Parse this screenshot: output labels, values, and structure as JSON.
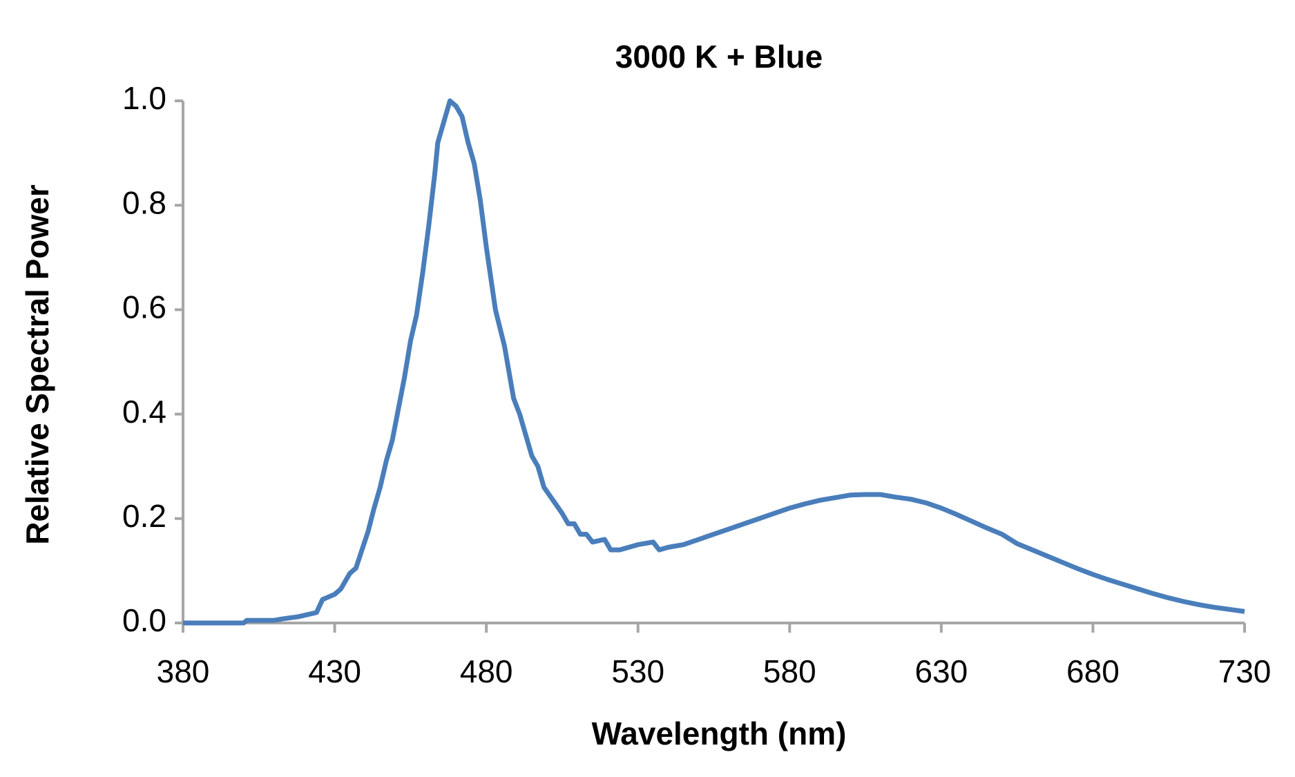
{
  "chart_data": {
    "type": "line",
    "title": "3000 K + Blue",
    "x_label": "Wavelength (nm)",
    "y_label": "Relative Spectral Power",
    "x": [
      380,
      390,
      400,
      401,
      410,
      413,
      418,
      424,
      426,
      430,
      432,
      435,
      437,
      439,
      441,
      443,
      445,
      447,
      449,
      451,
      453,
      455,
      457,
      459,
      461,
      463,
      464,
      466,
      468,
      470,
      472,
      474,
      476,
      478,
      480,
      483,
      486,
      489,
      491,
      493,
      495,
      497,
      499,
      502,
      505,
      507,
      509,
      511,
      513,
      515,
      519,
      521,
      524,
      530,
      535,
      537,
      540,
      545,
      550,
      555,
      560,
      565,
      570,
      575,
      580,
      585,
      590,
      595,
      600,
      605,
      610,
      615,
      620,
      625,
      630,
      635,
      640,
      645,
      650,
      655,
      660,
      665,
      670,
      675,
      680,
      685,
      690,
      695,
      700,
      705,
      710,
      715,
      720,
      725,
      730
    ],
    "series": [
      {
        "name": "3000 K + Blue",
        "color": "#4a7ebb",
        "values": [
          0,
          0,
          0,
          0.005,
          0.005,
          0.008,
          0.012,
          0.02,
          0.045,
          0.055,
          0.065,
          0.095,
          0.105,
          0.14,
          0.175,
          0.22,
          0.26,
          0.31,
          0.35,
          0.41,
          0.47,
          0.54,
          0.59,
          0.67,
          0.76,
          0.86,
          0.92,
          0.96,
          1.0,
          0.99,
          0.97,
          0.92,
          0.88,
          0.81,
          0.72,
          0.6,
          0.53,
          0.43,
          0.4,
          0.36,
          0.32,
          0.3,
          0.26,
          0.235,
          0.21,
          0.19,
          0.19,
          0.17,
          0.17,
          0.155,
          0.16,
          0.14,
          0.14,
          0.15,
          0.155,
          0.14,
          0.145,
          0.15,
          0.16,
          0.17,
          0.18,
          0.19,
          0.2,
          0.21,
          0.22,
          0.228,
          0.235,
          0.24,
          0.245,
          0.246,
          0.246,
          0.241,
          0.237,
          0.23,
          0.22,
          0.208,
          0.195,
          0.182,
          0.17,
          0.152,
          0.14,
          0.128,
          0.116,
          0.104,
          0.093,
          0.083,
          0.074,
          0.065,
          0.056,
          0.048,
          0.041,
          0.035,
          0.03,
          0.026,
          0.022
        ]
      }
    ],
    "xlim": [
      380,
      730
    ],
    "xticks": [
      380,
      430,
      480,
      530,
      580,
      630,
      680,
      730
    ],
    "ylim": [
      0,
      1
    ],
    "yticks": [
      {
        "value": 0,
        "label": "0.0"
      },
      0.2,
      0.4,
      0.6,
      0.8,
      {
        "value": 1,
        "label": "1.0"
      }
    ]
  }
}
